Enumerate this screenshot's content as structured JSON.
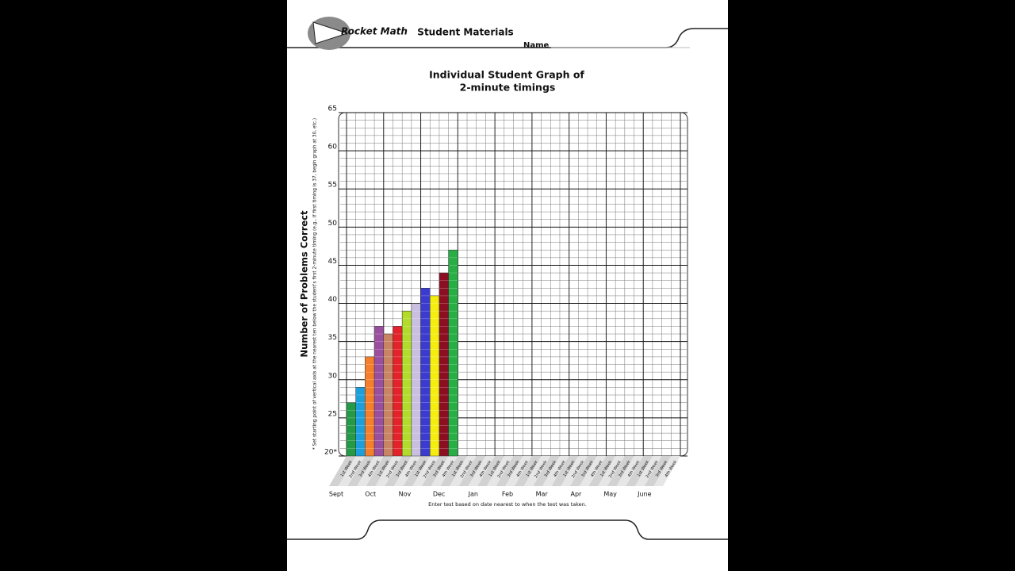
{
  "header": {
    "logo": "Rocket Math",
    "section": "Student Materials",
    "name_label": "Name"
  },
  "chart_data": {
    "type": "bar",
    "title": [
      "Individual Student Graph of",
      "2-minute timings"
    ],
    "y_label": "Number of Problems Correct",
    "axis_note": "* Set starting point of vertical axis at the nearest ten below the student's first 2-minute timing (e.g., if first timing is 37, begin graph at 30, etc.)",
    "categories": [
      "1st Week",
      "2nd Week",
      "3rd Week",
      "4th Week",
      "1st Week",
      "2nd Week",
      "3rd Week",
      "4th Week",
      "1st Week",
      "2nd Week",
      "3rd Week",
      "4th Week",
      "1st Week",
      "2nd Week",
      "3rd Week",
      "4th Week",
      "1st Week",
      "2nd Week",
      "3rd Week",
      "4th Week",
      "1st Week",
      "2nd Week",
      "3rd Week",
      "4th Week",
      "1st Week",
      "2nd Week",
      "3rd Week",
      "4th Week",
      "1st Week",
      "2nd Week",
      "3rd Week",
      "4th Week",
      "1st Week",
      "2nd Week",
      "3rd Week",
      "4th Week"
    ],
    "values": [
      27,
      29,
      33,
      37,
      36,
      37,
      39,
      40,
      42,
      41,
      44,
      47,
      null,
      null,
      null,
      null,
      null,
      null,
      null,
      null,
      null,
      null,
      null,
      null,
      null,
      null,
      null,
      null,
      null,
      null,
      null,
      null,
      null,
      null,
      null,
      null
    ],
    "colors": [
      "#239a45",
      "#1d9fdc",
      "#f57f2a",
      "#9a4f9e",
      "#c98463",
      "#e3222b",
      "#b3dc2a",
      "#c9bfe0",
      "#3b3bcf",
      "#f4ee10",
      "#8a0f22",
      "#27ae45",
      null,
      null,
      null,
      null,
      null,
      null,
      null,
      null,
      null,
      null,
      null,
      null,
      null,
      null,
      null,
      null,
      null,
      null,
      null,
      null,
      null,
      null,
      null,
      null
    ],
    "months": [
      "Sept",
      "Oct",
      "Nov",
      "Dec",
      "Jan",
      "Feb",
      "Mar",
      "Apr",
      "May",
      "June"
    ],
    "ylim": [
      20,
      65
    ],
    "yticks": [
      {
        "value": 20,
        "label": "20*"
      },
      25,
      30,
      35,
      40,
      45,
      50,
      55,
      60,
      65
    ],
    "grid": true,
    "footer_note": "Enter test based on date nearest to when the test was taken."
  }
}
